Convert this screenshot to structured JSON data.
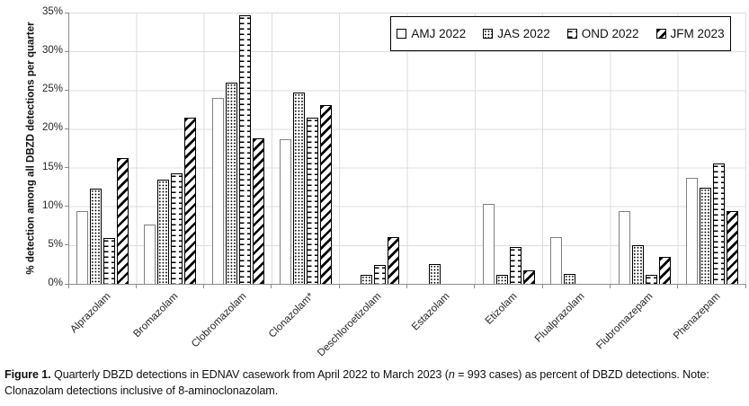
{
  "figure": {
    "y_axis": {
      "title": "% detection among all DBZD detections per quarter",
      "tick_labels": [
        "0%",
        "5%",
        "10%",
        "15%",
        "20%",
        "25%",
        "30%",
        "35%"
      ]
    },
    "colors": {
      "bar_fill": "#ffffff",
      "bar_border": "#000000",
      "plain_bar_border": "#808080",
      "gridline": "#dcdcdc",
      "axis": "#8c8c8c",
      "text": "#1a1a1a"
    }
  },
  "chart_data": {
    "type": "bar",
    "title": "",
    "xlabel": "",
    "ylabel": "% detection among all DBZD detections per quarter",
    "ylim": [
      0,
      35
    ],
    "ytick_step": 5,
    "grid": true,
    "legend_position": "top-right",
    "categories": [
      "Alprazolam",
      "Bromazolam",
      "Clobromazolam",
      "Clonazolam*",
      "Deschloroetizolam",
      "Estazolam",
      "Etizolam",
      "Flualprazolam",
      "Flubromazepam",
      "Phenazepam"
    ],
    "series": [
      {
        "name": "AMJ 2022",
        "pattern": "plain",
        "values": [
          9.4,
          7.7,
          24.0,
          18.7,
          0,
          0,
          10.3,
          6.0,
          9.4,
          13.7
        ]
      },
      {
        "name": "JAS 2022",
        "pattern": "dots",
        "values": [
          12.3,
          13.5,
          26.0,
          24.7,
          1.2,
          2.5,
          1.2,
          1.3,
          5.0,
          12.4
        ]
      },
      {
        "name": "OND 2022",
        "pattern": "dashes",
        "values": [
          5.9,
          14.2,
          34.6,
          21.4,
          2.4,
          0,
          4.8,
          0,
          1.2,
          15.5
        ]
      },
      {
        "name": "JFM 2023",
        "pattern": "diagonal",
        "values": [
          16.2,
          21.4,
          18.8,
          23.1,
          6.0,
          0,
          1.7,
          0,
          3.5,
          9.4
        ]
      }
    ]
  },
  "caption": {
    "label": "Figure 1.",
    "text_before_n": " Quarterly DBZD detections in EDNAV casework from April 2022 to March 2023 (",
    "n_symbol": "n",
    "text_after_n": " = 993 cases) as percent of DBZD detections. Note: Clonazolam detections inclusive of 8-aminoclonazolam."
  }
}
